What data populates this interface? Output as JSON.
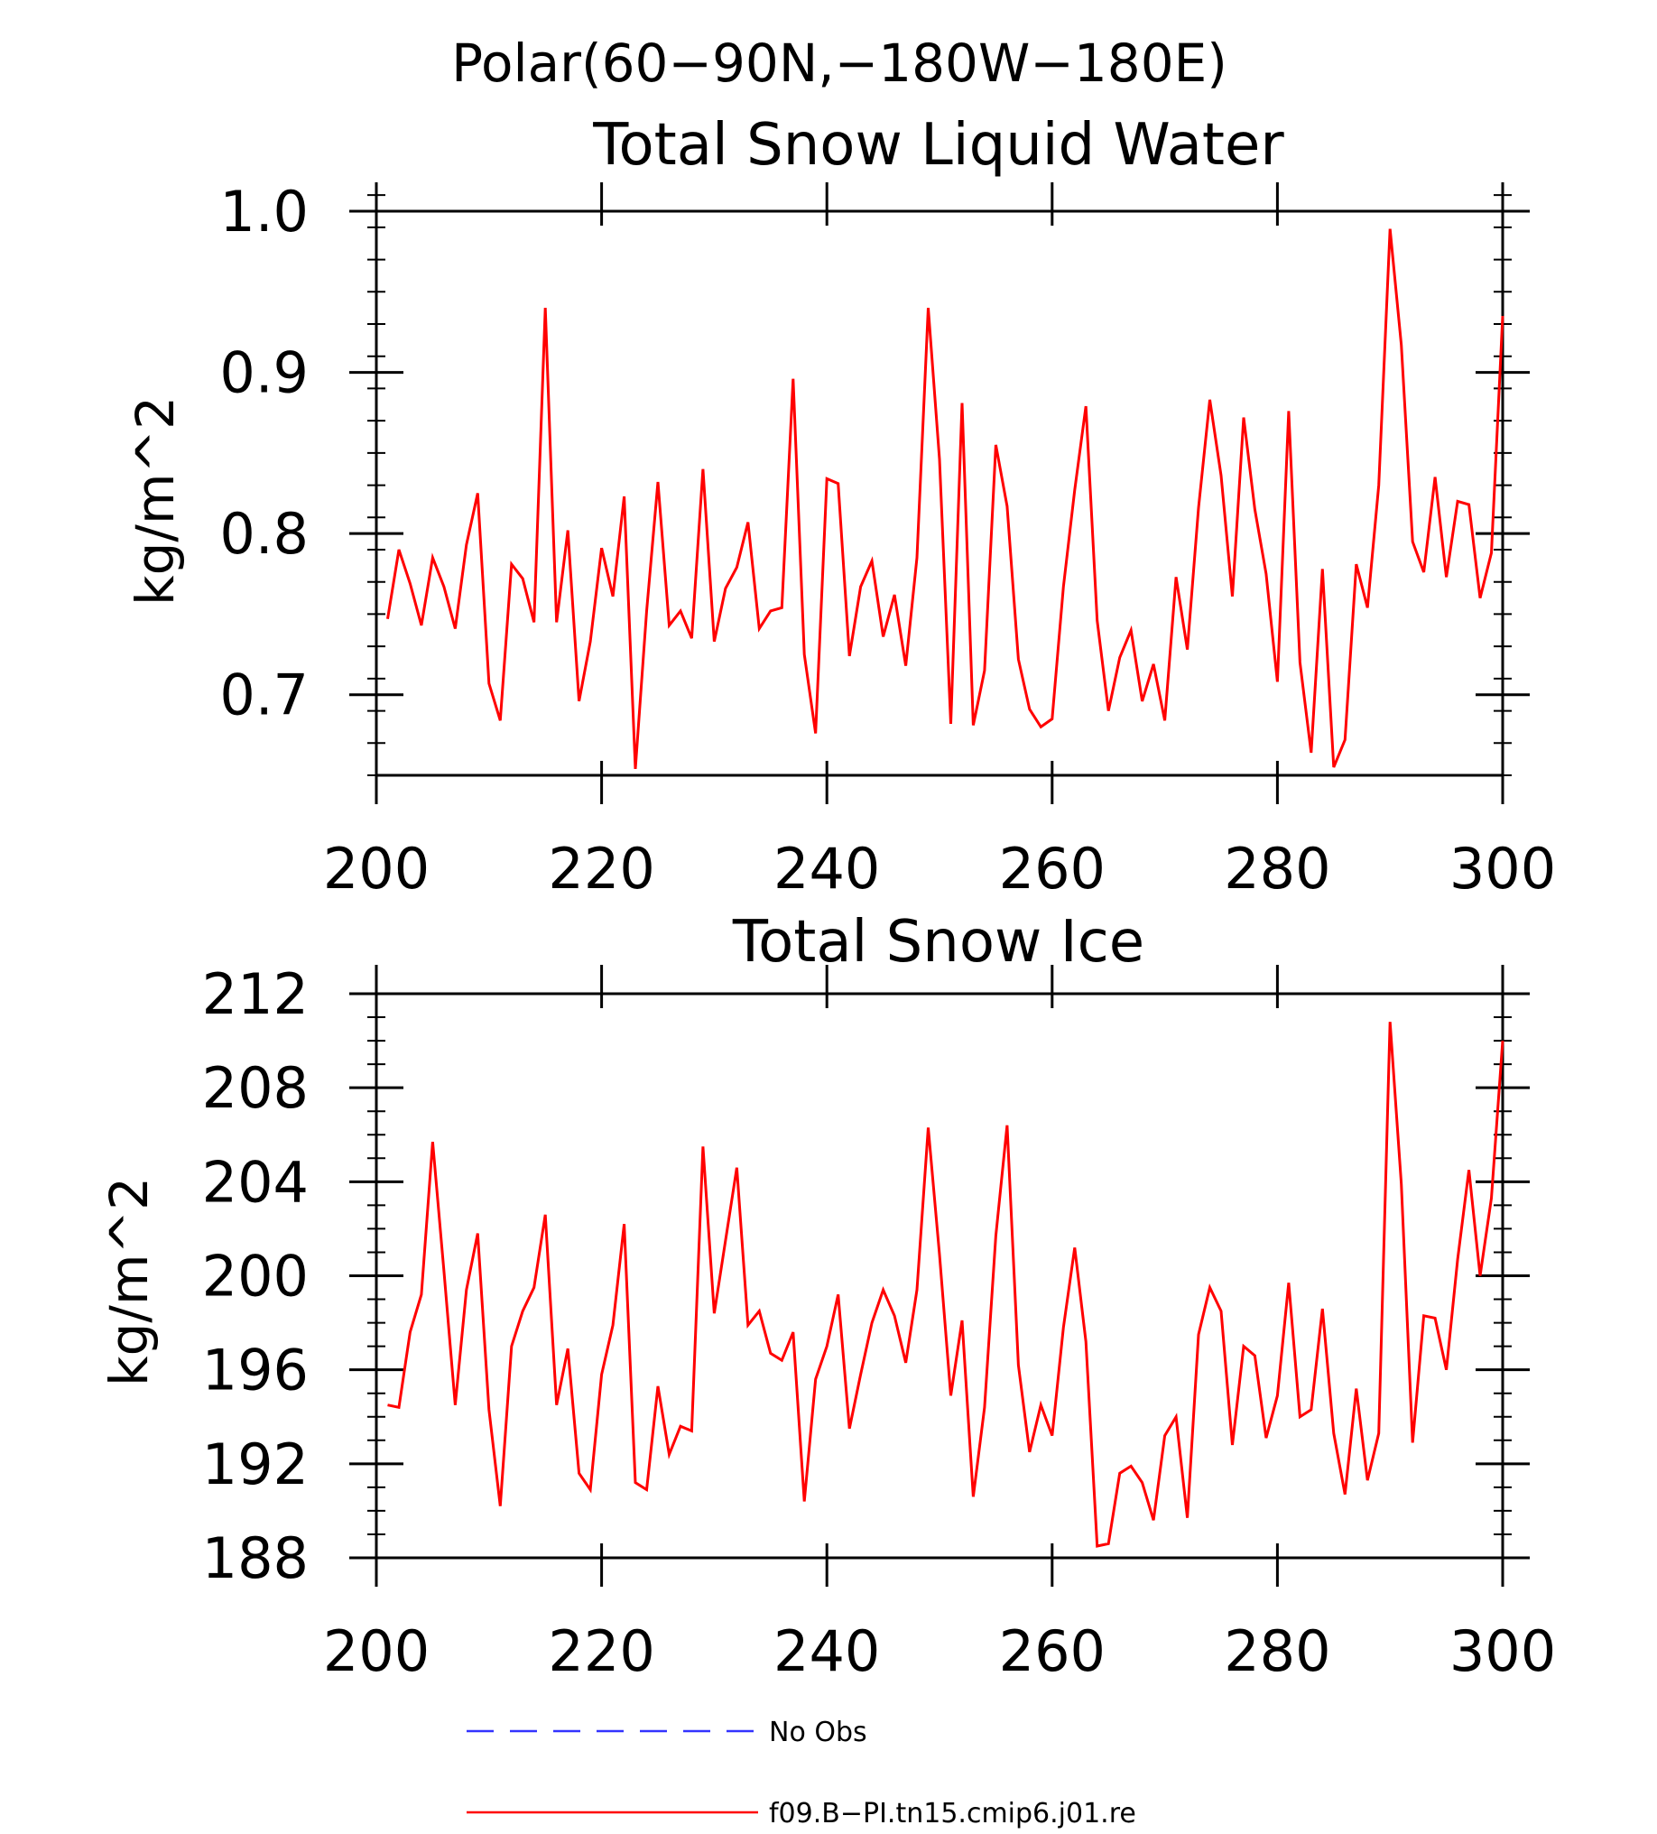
{
  "figure": {
    "title": "Polar(60−90N,−180W−180E)"
  },
  "chart_data": [
    {
      "type": "line",
      "title": "Total Snow Liquid Water",
      "xlabel": "",
      "ylabel": "kg/m^2",
      "xlim": [
        200,
        300
      ],
      "ylim": [
        0.65,
        1.0
      ],
      "x_ticks": [
        200,
        220,
        240,
        260,
        280,
        300
      ],
      "x_tick_labels": [
        "200",
        "220",
        "240",
        "260",
        "280",
        "300"
      ],
      "y_ticks": [
        0.7,
        0.8,
        0.9,
        1.0
      ],
      "y_tick_labels": [
        "0.7",
        "0.8",
        "0.9",
        "1.0"
      ],
      "y_minor_step": 0.02,
      "grid": false,
      "series": [
        {
          "name": "f09.B−PI.tn15.cmip6.j01.re",
          "color": "#ff0000",
          "x_start": 201,
          "x_step": 1,
          "values": [
            0.747,
            0.79,
            0.769,
            0.743,
            0.785,
            0.767,
            0.741,
            0.793,
            0.825,
            0.707,
            0.684,
            0.781,
            0.772,
            0.745,
            0.94,
            0.745,
            0.802,
            0.696,
            0.733,
            0.791,
            0.761,
            0.823,
            0.654,
            0.752,
            0.832,
            0.743,
            0.752,
            0.735,
            0.84,
            0.733,
            0.766,
            0.779,
            0.807,
            0.741,
            0.752,
            0.754,
            0.896,
            0.725,
            0.676,
            0.834,
            0.831,
            0.724,
            0.767,
            0.783,
            0.736,
            0.762,
            0.718,
            0.785,
            0.94,
            0.846,
            0.682,
            0.881,
            0.681,
            0.715,
            0.855,
            0.817,
            0.722,
            0.691,
            0.68,
            0.685,
            0.767,
            0.827,
            0.879,
            0.746,
            0.69,
            0.723,
            0.74,
            0.696,
            0.719,
            0.684,
            0.773,
            0.728,
            0.816,
            0.883,
            0.836,
            0.761,
            0.872,
            0.815,
            0.775,
            0.708,
            0.876,
            0.72,
            0.664,
            0.778,
            0.655,
            0.672,
            0.781,
            0.754,
            0.83,
            0.989,
            0.917,
            0.795,
            0.776,
            0.835,
            0.773,
            0.82,
            0.818,
            0.76,
            0.788,
            0.935
          ]
        }
      ]
    },
    {
      "type": "line",
      "title": "Total Snow Ice",
      "xlabel": "",
      "ylabel": "kg/m^2",
      "xlim": [
        200,
        300
      ],
      "ylim": [
        188,
        212
      ],
      "x_ticks": [
        200,
        220,
        240,
        260,
        280,
        300
      ],
      "x_tick_labels": [
        "200",
        "220",
        "240",
        "260",
        "280",
        "300"
      ],
      "y_ticks": [
        188,
        192,
        196,
        200,
        204,
        208,
        212
      ],
      "y_tick_labels": [
        "188",
        "192",
        "196",
        "200",
        "204",
        "208",
        "212"
      ],
      "y_minor_step": 1,
      "grid": false,
      "series": [
        {
          "name": "f09.B−PI.tn15.cmip6.j01.re",
          "color": "#ff0000",
          "x_start": 201,
          "x_step": 1,
          "values": [
            194.5,
            194.4,
            197.6,
            199.2,
            205.7,
            200.2,
            194.5,
            199.4,
            201.8,
            194.3,
            190.2,
            197.0,
            198.5,
            199.5,
            202.6,
            194.5,
            196.9,
            191.6,
            190.9,
            195.8,
            197.9,
            202.2,
            191.2,
            190.9,
            195.3,
            192.4,
            193.6,
            193.4,
            205.5,
            198.4,
            201.5,
            204.6,
            197.9,
            198.5,
            196.7,
            196.4,
            197.6,
            190.4,
            195.6,
            197.0,
            199.2,
            193.5,
            195.8,
            198.0,
            199.4,
            198.3,
            196.3,
            199.4,
            206.3,
            200.9,
            194.9,
            198.1,
            190.6,
            194.4,
            201.7,
            206.4,
            196.2,
            192.5,
            194.5,
            193.2,
            197.8,
            201.2,
            197.2,
            188.5,
            188.6,
            191.6,
            191.9,
            191.2,
            189.6,
            193.2,
            194.0,
            189.7,
            197.5,
            199.5,
            198.5,
            192.8,
            197.0,
            196.6,
            193.1,
            194.9,
            199.7,
            194.0,
            194.3,
            198.6,
            193.3,
            190.7,
            195.2,
            191.3,
            193.3,
            210.8,
            203.9,
            192.9,
            198.3,
            198.2,
            196.0,
            200.7,
            204.5,
            200.0,
            203.3,
            210.0
          ]
        }
      ]
    }
  ],
  "legend": {
    "placement": "bottom",
    "items": [
      {
        "label": "No Obs",
        "color": "#3333ff",
        "style": "dashed"
      },
      {
        "label": "f09.B−PI.tn15.cmip6.j01.re",
        "color": "#ff0000",
        "style": "solid"
      }
    ]
  }
}
